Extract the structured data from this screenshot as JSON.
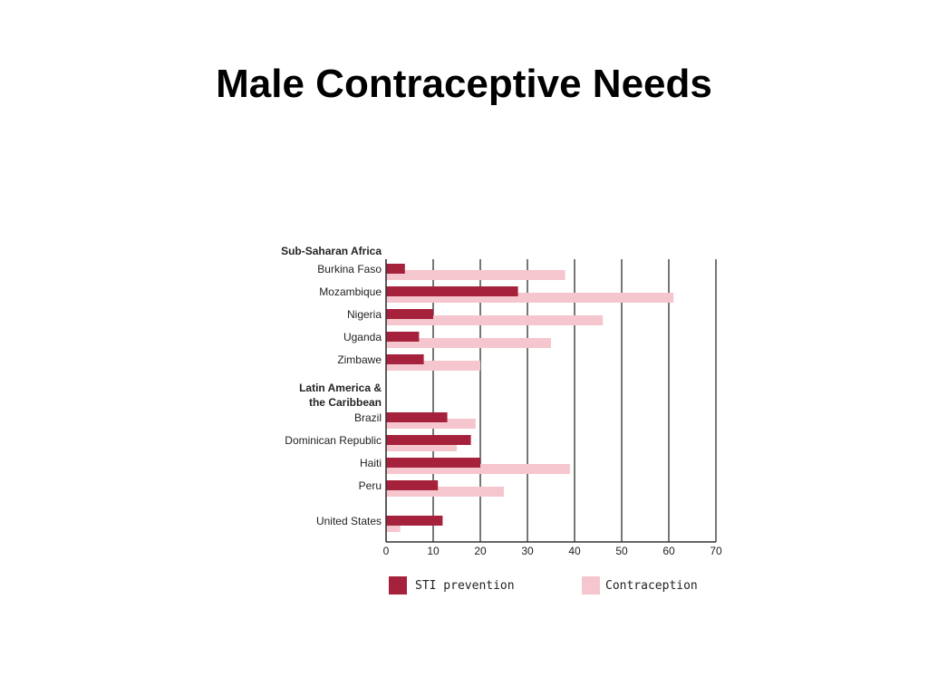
{
  "slide": {
    "title": "Male Contraceptive Needs"
  },
  "chart_data": {
    "type": "bar",
    "orientation": "horizontal",
    "xlim": [
      0,
      70
    ],
    "x_ticks": [
      "0",
      "10",
      "20",
      "30",
      "40",
      "50",
      "60",
      "70"
    ],
    "grid": true,
    "legend_placement": "bottom",
    "colors": {
      "STI prevention": "#a6223c",
      "Contraception": "#f5c6cd"
    },
    "groups": [
      {
        "label_lines": [
          "Sub-Saharan Africa"
        ],
        "categories": [
          "Burkina Faso",
          "Mozambique",
          "Nigeria",
          "Uganda",
          "Zimbawe"
        ]
      },
      {
        "label_lines": [
          "Latin America &",
          "the Caribbean"
        ],
        "categories": [
          "Brazil",
          "Dominican Republic",
          "Haiti",
          "Peru"
        ]
      },
      {
        "label_lines": [],
        "categories": [
          "United States"
        ]
      }
    ],
    "categories": [
      "Burkina Faso",
      "Mozambique",
      "Nigeria",
      "Uganda",
      "Zimbawe",
      "Brazil",
      "Dominican Republic",
      "Haiti",
      "Peru",
      "United States"
    ],
    "series": [
      {
        "name": "STI prevention",
        "values": [
          4,
          28,
          10,
          7,
          8,
          13,
          18,
          20,
          11,
          12
        ]
      },
      {
        "name": "Contraception",
        "values": [
          38,
          61,
          46,
          35,
          20,
          19,
          15,
          39,
          25,
          3
        ]
      }
    ]
  }
}
